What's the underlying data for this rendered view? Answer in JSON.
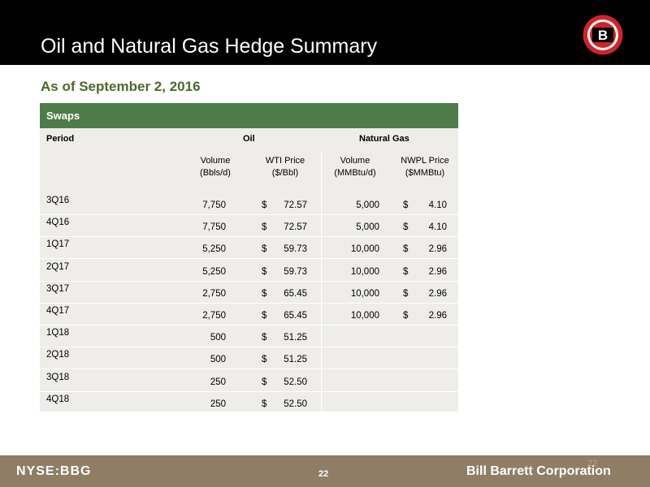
{
  "title": "Oil and Natural Gas Hedge Summary",
  "subtitle": "As of September 2, 2016",
  "logo_letter": "B",
  "table": {
    "section_label": "Swaps",
    "period_header": "Period",
    "oil_header": "Oil",
    "gas_header": "Natural Gas",
    "sub_headers": {
      "oil_volume": [
        "Volume",
        "(Bbls/d)"
      ],
      "oil_price": [
        "WTI Price",
        "($/Bbl)"
      ],
      "gas_volume": [
        "Volume",
        "(MMBtu/d)"
      ],
      "gas_price": [
        "NWPL Price",
        "($MMBtu)"
      ]
    },
    "rows": [
      {
        "period": "3Q16",
        "oil_volume": "7,750",
        "oil_dollar": "$",
        "oil_price": "72.57",
        "gas_volume": "5,000",
        "gas_dollar": "$",
        "gas_price": "4.10"
      },
      {
        "period": "4Q16",
        "oil_volume": "7,750",
        "oil_dollar": "$",
        "oil_price": "72.57",
        "gas_volume": "5,000",
        "gas_dollar": "$",
        "gas_price": "4.10"
      },
      {
        "period": "1Q17",
        "oil_volume": "5,250",
        "oil_dollar": "$",
        "oil_price": "59.73",
        "gas_volume": "10,000",
        "gas_dollar": "$",
        "gas_price": "2.96"
      },
      {
        "period": "2Q17",
        "oil_volume": "5,250",
        "oil_dollar": "$",
        "oil_price": "59.73",
        "gas_volume": "10,000",
        "gas_dollar": "$",
        "gas_price": "2.96"
      },
      {
        "period": "3Q17",
        "oil_volume": "2,750",
        "oil_dollar": "$",
        "oil_price": "65.45",
        "gas_volume": "10,000",
        "gas_dollar": "$",
        "gas_price": "2.96"
      },
      {
        "period": "4Q17",
        "oil_volume": "2,750",
        "oil_dollar": "$",
        "oil_price": "65.45",
        "gas_volume": "10,000",
        "gas_dollar": "$",
        "gas_price": "2.96"
      },
      {
        "period": "1Q18",
        "oil_volume": "500",
        "oil_dollar": "$",
        "oil_price": "51.25",
        "gas_volume": "",
        "gas_dollar": "",
        "gas_price": ""
      },
      {
        "period": "2Q18",
        "oil_volume": "500",
        "oil_dollar": "$",
        "oil_price": "51.25",
        "gas_volume": "",
        "gas_dollar": "",
        "gas_price": ""
      },
      {
        "period": "3Q18",
        "oil_volume": "250",
        "oil_dollar": "$",
        "oil_price": "52.50",
        "gas_volume": "",
        "gas_dollar": "",
        "gas_price": ""
      },
      {
        "period": "4Q18",
        "oil_volume": "250",
        "oil_dollar": "$",
        "oil_price": "52.50",
        "gas_volume": "",
        "gas_dollar": "",
        "gas_price": ""
      }
    ]
  },
  "footer": {
    "ticker": "NYSE:BBG",
    "page_number": "22",
    "page_number_faint": "22",
    "company": "Bill Barrett Corporation"
  },
  "colors": {
    "header_bg": "#000000",
    "accent_green": "#4e7c49",
    "subtitle_green": "#4a6a2a",
    "table_bg": "#eeede9",
    "footer_bg": "#8f7d66",
    "logo_red": "#d2232a"
  }
}
